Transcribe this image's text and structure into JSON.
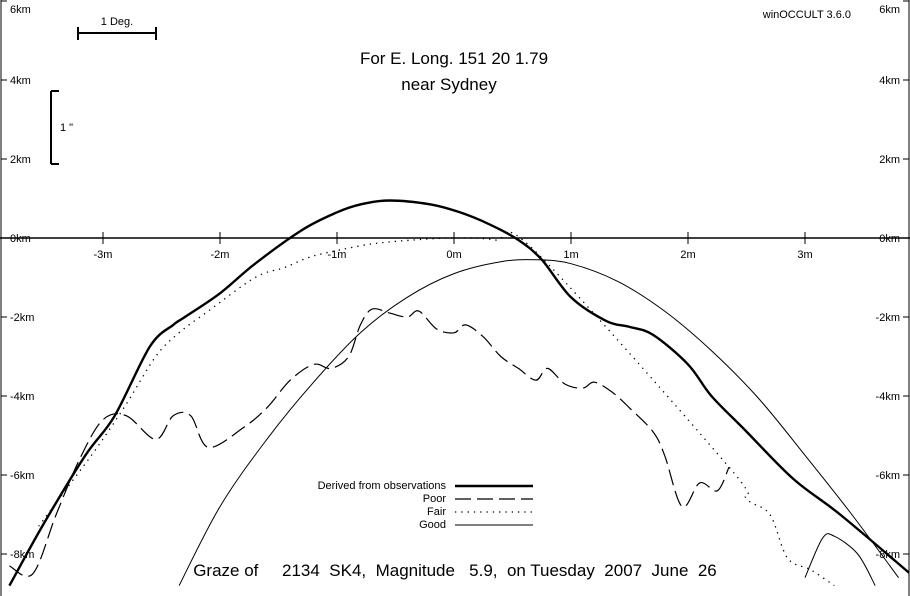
{
  "app": {
    "version_label": "winOCCULT 3.6.0"
  },
  "header": {
    "longitude_text": "For E. Long.  151 20  1.79",
    "location_text": "near Sydney"
  },
  "scale": {
    "degree_label": "1 Deg.",
    "arcsec_label": "1 \""
  },
  "footer": {
    "graze_text": "Graze of     2134  SK4,  Magnitude   5.9,  on Tuesday  2007  June  26"
  },
  "legend": {
    "position": "bottom-center",
    "entries": [
      {
        "label": "Derived from observations",
        "style": "thick"
      },
      {
        "label": "Poor",
        "style": "long-dash"
      },
      {
        "label": "Fair",
        "style": "dotted"
      },
      {
        "label": "Good",
        "style": "thin"
      }
    ]
  },
  "chart_data": {
    "type": "line",
    "title": "For E. Long.  151 20  1.79",
    "subtitle": "near Sydney",
    "xlabel": "",
    "ylabel": "",
    "xlim": [
      -3.9,
      3.9
    ],
    "ylim": [
      -8.8,
      6.0
    ],
    "x_ticks": [
      {
        "value": -3,
        "label": "-3m"
      },
      {
        "value": -2,
        "label": "-2m"
      },
      {
        "value": -1,
        "label": "-1m"
      },
      {
        "value": 0,
        "label": "0m"
      },
      {
        "value": 1,
        "label": "1m"
      },
      {
        "value": 2,
        "label": "2m"
      },
      {
        "value": 3,
        "label": "3m"
      }
    ],
    "y_ticks": [
      {
        "value": 6,
        "label": "6km"
      },
      {
        "value": 4,
        "label": "4km"
      },
      {
        "value": 2,
        "label": "2km"
      },
      {
        "value": 0,
        "label": "0km"
      },
      {
        "value": -2,
        "label": "-2km"
      },
      {
        "value": -4,
        "label": "-4km"
      },
      {
        "value": -6,
        "label": "-6km"
      },
      {
        "value": -8,
        "label": "-8km"
      }
    ],
    "grid": false,
    "series": [
      {
        "name": "Derived from observations",
        "style": "thick",
        "points": [
          [
            -3.8,
            -8.8
          ],
          [
            -3.5,
            -7.2
          ],
          [
            -3.15,
            -5.5
          ],
          [
            -2.9,
            -4.5
          ],
          [
            -2.6,
            -2.75
          ],
          [
            -2.4,
            -2.2
          ],
          [
            -2.3,
            -2.0
          ],
          [
            -2.0,
            -1.4
          ],
          [
            -1.7,
            -0.65
          ],
          [
            -1.3,
            0.2
          ],
          [
            -1.0,
            0.65
          ],
          [
            -0.8,
            0.85
          ],
          [
            -0.55,
            0.95
          ],
          [
            -0.2,
            0.85
          ],
          [
            0.05,
            0.65
          ],
          [
            0.3,
            0.35
          ],
          [
            0.55,
            -0.05
          ],
          [
            0.75,
            -0.55
          ],
          [
            1.0,
            -1.5
          ],
          [
            1.3,
            -2.1
          ],
          [
            1.5,
            -2.25
          ],
          [
            1.7,
            -2.45
          ],
          [
            2.0,
            -3.2
          ],
          [
            2.2,
            -4.0
          ],
          [
            2.5,
            -4.9
          ],
          [
            2.9,
            -6.1
          ],
          [
            3.3,
            -7.0
          ],
          [
            3.9,
            -8.5
          ]
        ]
      },
      {
        "name": "Poor",
        "style": "long-dash",
        "points": [
          [
            -3.8,
            -8.3
          ],
          [
            -3.6,
            -8.5
          ],
          [
            -3.4,
            -7.0
          ],
          [
            -3.2,
            -5.6
          ],
          [
            -3.0,
            -4.6
          ],
          [
            -2.8,
            -4.5
          ],
          [
            -2.55,
            -5.1
          ],
          [
            -2.4,
            -4.5
          ],
          [
            -2.25,
            -4.5
          ],
          [
            -2.1,
            -5.3
          ],
          [
            -1.8,
            -4.8
          ],
          [
            -1.6,
            -4.3
          ],
          [
            -1.4,
            -3.6
          ],
          [
            -1.2,
            -3.2
          ],
          [
            -1.05,
            -3.3
          ],
          [
            -0.9,
            -3.0
          ],
          [
            -0.8,
            -2.2
          ],
          [
            -0.7,
            -1.8
          ],
          [
            -0.55,
            -1.9
          ],
          [
            -0.4,
            -2.0
          ],
          [
            -0.3,
            -1.85
          ],
          [
            -0.15,
            -2.3
          ],
          [
            0.0,
            -2.4
          ],
          [
            0.1,
            -2.2
          ],
          [
            0.25,
            -2.5
          ],
          [
            0.4,
            -3.0
          ],
          [
            0.55,
            -3.3
          ],
          [
            0.7,
            -3.6
          ],
          [
            0.8,
            -3.3
          ],
          [
            0.95,
            -3.7
          ],
          [
            1.1,
            -3.8
          ],
          [
            1.2,
            -3.65
          ],
          [
            1.35,
            -3.9
          ],
          [
            1.5,
            -4.3
          ],
          [
            1.7,
            -4.9
          ],
          [
            1.8,
            -5.5
          ],
          [
            1.95,
            -6.8
          ],
          [
            2.1,
            -6.2
          ],
          [
            2.25,
            -6.4
          ],
          [
            2.35,
            -5.8
          ]
        ]
      },
      {
        "name": "Fair",
        "style": "dotted",
        "points": [
          [
            -3.55,
            -7.3
          ],
          [
            -3.3,
            -6.3
          ],
          [
            -3.05,
            -5.3
          ],
          [
            -2.8,
            -4.2
          ],
          [
            -2.55,
            -3.0
          ],
          [
            -2.35,
            -2.4
          ],
          [
            -2.1,
            -1.85
          ],
          [
            -1.7,
            -1.0
          ],
          [
            -1.45,
            -0.75
          ],
          [
            -1.25,
            -0.5
          ],
          [
            -1.05,
            -0.35
          ],
          [
            -0.7,
            -0.15
          ],
          [
            -0.35,
            -0.05
          ],
          [
            0.0,
            0.0
          ],
          [
            0.35,
            -0.05
          ],
          [
            0.7,
            -0.35
          ],
          [
            2.35,
            -5.8
          ],
          [
            2.5,
            -6.6
          ],
          [
            2.7,
            -7.0
          ],
          [
            2.85,
            -8.1
          ],
          [
            3.05,
            -8.4
          ],
          [
            3.25,
            -8.8
          ]
        ]
      },
      {
        "name": "Good",
        "style": "thin",
        "points": [
          [
            -2.35,
            -8.8
          ],
          [
            -2.0,
            -6.8
          ],
          [
            -1.6,
            -5.1
          ],
          [
            -1.2,
            -3.65
          ],
          [
            -0.8,
            -2.4
          ],
          [
            -0.4,
            -1.5
          ],
          [
            0.0,
            -0.9
          ],
          [
            0.4,
            -0.6
          ],
          [
            0.7,
            -0.55
          ],
          [
            1.0,
            -0.65
          ],
          [
            1.4,
            -1.1
          ],
          [
            1.8,
            -1.85
          ],
          [
            2.2,
            -2.85
          ],
          [
            2.6,
            -4.05
          ],
          [
            3.0,
            -5.5
          ],
          [
            3.4,
            -7.0
          ],
          [
            3.8,
            -8.6
          ]
        ]
      },
      {
        "name": "",
        "style": "thin",
        "points": [
          [
            3.0,
            -8.6
          ],
          [
            3.15,
            -7.6
          ],
          [
            3.25,
            -7.55
          ],
          [
            3.45,
            -8.0
          ],
          [
            3.6,
            -8.8
          ]
        ]
      }
    ]
  }
}
